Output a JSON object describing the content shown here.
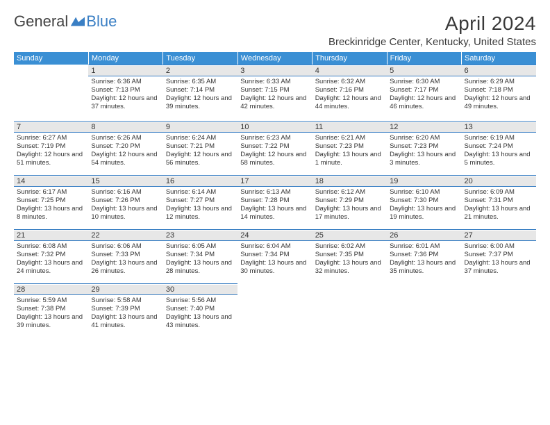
{
  "brand": {
    "general": "General",
    "blue": "Blue"
  },
  "title": "April 2024",
  "location": "Breckinridge Center, Kentucky, United States",
  "colors": {
    "header_bg": "#3a8fd4",
    "accent": "#3a7fc4",
    "daynum_bg": "#e7e7e7"
  },
  "weekdays": [
    "Sunday",
    "Monday",
    "Tuesday",
    "Wednesday",
    "Thursday",
    "Friday",
    "Saturday"
  ],
  "weeks": [
    [
      null,
      {
        "n": "1",
        "sunrise": "Sunrise: 6:36 AM",
        "sunset": "Sunset: 7:13 PM",
        "daylight": "Daylight: 12 hours and 37 minutes."
      },
      {
        "n": "2",
        "sunrise": "Sunrise: 6:35 AM",
        "sunset": "Sunset: 7:14 PM",
        "daylight": "Daylight: 12 hours and 39 minutes."
      },
      {
        "n": "3",
        "sunrise": "Sunrise: 6:33 AM",
        "sunset": "Sunset: 7:15 PM",
        "daylight": "Daylight: 12 hours and 42 minutes."
      },
      {
        "n": "4",
        "sunrise": "Sunrise: 6:32 AM",
        "sunset": "Sunset: 7:16 PM",
        "daylight": "Daylight: 12 hours and 44 minutes."
      },
      {
        "n": "5",
        "sunrise": "Sunrise: 6:30 AM",
        "sunset": "Sunset: 7:17 PM",
        "daylight": "Daylight: 12 hours and 46 minutes."
      },
      {
        "n": "6",
        "sunrise": "Sunrise: 6:29 AM",
        "sunset": "Sunset: 7:18 PM",
        "daylight": "Daylight: 12 hours and 49 minutes."
      }
    ],
    [
      {
        "n": "7",
        "sunrise": "Sunrise: 6:27 AM",
        "sunset": "Sunset: 7:19 PM",
        "daylight": "Daylight: 12 hours and 51 minutes."
      },
      {
        "n": "8",
        "sunrise": "Sunrise: 6:26 AM",
        "sunset": "Sunset: 7:20 PM",
        "daylight": "Daylight: 12 hours and 54 minutes."
      },
      {
        "n": "9",
        "sunrise": "Sunrise: 6:24 AM",
        "sunset": "Sunset: 7:21 PM",
        "daylight": "Daylight: 12 hours and 56 minutes."
      },
      {
        "n": "10",
        "sunrise": "Sunrise: 6:23 AM",
        "sunset": "Sunset: 7:22 PM",
        "daylight": "Daylight: 12 hours and 58 minutes."
      },
      {
        "n": "11",
        "sunrise": "Sunrise: 6:21 AM",
        "sunset": "Sunset: 7:23 PM",
        "daylight": "Daylight: 13 hours and 1 minute."
      },
      {
        "n": "12",
        "sunrise": "Sunrise: 6:20 AM",
        "sunset": "Sunset: 7:23 PM",
        "daylight": "Daylight: 13 hours and 3 minutes."
      },
      {
        "n": "13",
        "sunrise": "Sunrise: 6:19 AM",
        "sunset": "Sunset: 7:24 PM",
        "daylight": "Daylight: 13 hours and 5 minutes."
      }
    ],
    [
      {
        "n": "14",
        "sunrise": "Sunrise: 6:17 AM",
        "sunset": "Sunset: 7:25 PM",
        "daylight": "Daylight: 13 hours and 8 minutes."
      },
      {
        "n": "15",
        "sunrise": "Sunrise: 6:16 AM",
        "sunset": "Sunset: 7:26 PM",
        "daylight": "Daylight: 13 hours and 10 minutes."
      },
      {
        "n": "16",
        "sunrise": "Sunrise: 6:14 AM",
        "sunset": "Sunset: 7:27 PM",
        "daylight": "Daylight: 13 hours and 12 minutes."
      },
      {
        "n": "17",
        "sunrise": "Sunrise: 6:13 AM",
        "sunset": "Sunset: 7:28 PM",
        "daylight": "Daylight: 13 hours and 14 minutes."
      },
      {
        "n": "18",
        "sunrise": "Sunrise: 6:12 AM",
        "sunset": "Sunset: 7:29 PM",
        "daylight": "Daylight: 13 hours and 17 minutes."
      },
      {
        "n": "19",
        "sunrise": "Sunrise: 6:10 AM",
        "sunset": "Sunset: 7:30 PM",
        "daylight": "Daylight: 13 hours and 19 minutes."
      },
      {
        "n": "20",
        "sunrise": "Sunrise: 6:09 AM",
        "sunset": "Sunset: 7:31 PM",
        "daylight": "Daylight: 13 hours and 21 minutes."
      }
    ],
    [
      {
        "n": "21",
        "sunrise": "Sunrise: 6:08 AM",
        "sunset": "Sunset: 7:32 PM",
        "daylight": "Daylight: 13 hours and 24 minutes."
      },
      {
        "n": "22",
        "sunrise": "Sunrise: 6:06 AM",
        "sunset": "Sunset: 7:33 PM",
        "daylight": "Daylight: 13 hours and 26 minutes."
      },
      {
        "n": "23",
        "sunrise": "Sunrise: 6:05 AM",
        "sunset": "Sunset: 7:34 PM",
        "daylight": "Daylight: 13 hours and 28 minutes."
      },
      {
        "n": "24",
        "sunrise": "Sunrise: 6:04 AM",
        "sunset": "Sunset: 7:34 PM",
        "daylight": "Daylight: 13 hours and 30 minutes."
      },
      {
        "n": "25",
        "sunrise": "Sunrise: 6:02 AM",
        "sunset": "Sunset: 7:35 PM",
        "daylight": "Daylight: 13 hours and 32 minutes."
      },
      {
        "n": "26",
        "sunrise": "Sunrise: 6:01 AM",
        "sunset": "Sunset: 7:36 PM",
        "daylight": "Daylight: 13 hours and 35 minutes."
      },
      {
        "n": "27",
        "sunrise": "Sunrise: 6:00 AM",
        "sunset": "Sunset: 7:37 PM",
        "daylight": "Daylight: 13 hours and 37 minutes."
      }
    ],
    [
      {
        "n": "28",
        "sunrise": "Sunrise: 5:59 AM",
        "sunset": "Sunset: 7:38 PM",
        "daylight": "Daylight: 13 hours and 39 minutes."
      },
      {
        "n": "29",
        "sunrise": "Sunrise: 5:58 AM",
        "sunset": "Sunset: 7:39 PM",
        "daylight": "Daylight: 13 hours and 41 minutes."
      },
      {
        "n": "30",
        "sunrise": "Sunrise: 5:56 AM",
        "sunset": "Sunset: 7:40 PM",
        "daylight": "Daylight: 13 hours and 43 minutes."
      },
      null,
      null,
      null,
      null
    ]
  ]
}
